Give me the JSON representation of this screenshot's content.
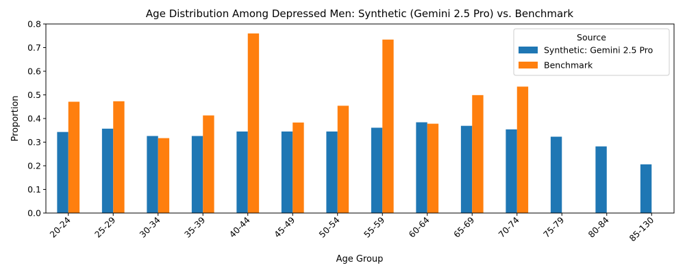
{
  "chart_data": {
    "type": "bar",
    "title": "Age Distribution Among Depressed Men: Synthetic (Gemini 2.5 Pro) vs. Benchmark",
    "xlabel": "Age Group",
    "ylabel": "Proportion",
    "ylim": [
      0,
      0.8
    ],
    "yticks": [
      "0.0",
      "0.1",
      "0.2",
      "0.3",
      "0.4",
      "0.5",
      "0.6",
      "0.7",
      "0.8"
    ],
    "categories": [
      "20-24",
      "25-29",
      "30-34",
      "35-39",
      "40-44",
      "45-49",
      "50-54",
      "55-59",
      "60-64",
      "65-69",
      "70-74",
      "75-79",
      "80-84",
      "85-130"
    ],
    "series": [
      {
        "name": "Synthetic: Gemini 2.5 Pro",
        "color": "#1f77b4",
        "values": [
          0.343,
          0.357,
          0.326,
          0.326,
          0.345,
          0.345,
          0.345,
          0.361,
          0.384,
          0.369,
          0.354,
          0.323,
          0.282,
          0.206
        ]
      },
      {
        "name": "Benchmark",
        "color": "#ff7f0e",
        "values": [
          0.471,
          0.473,
          0.317,
          0.413,
          0.76,
          0.383,
          0.454,
          0.734,
          0.378,
          0.499,
          0.535,
          null,
          null,
          null
        ]
      }
    ],
    "legend": {
      "title": "Source",
      "placement": "top-right"
    },
    "grid": false
  }
}
